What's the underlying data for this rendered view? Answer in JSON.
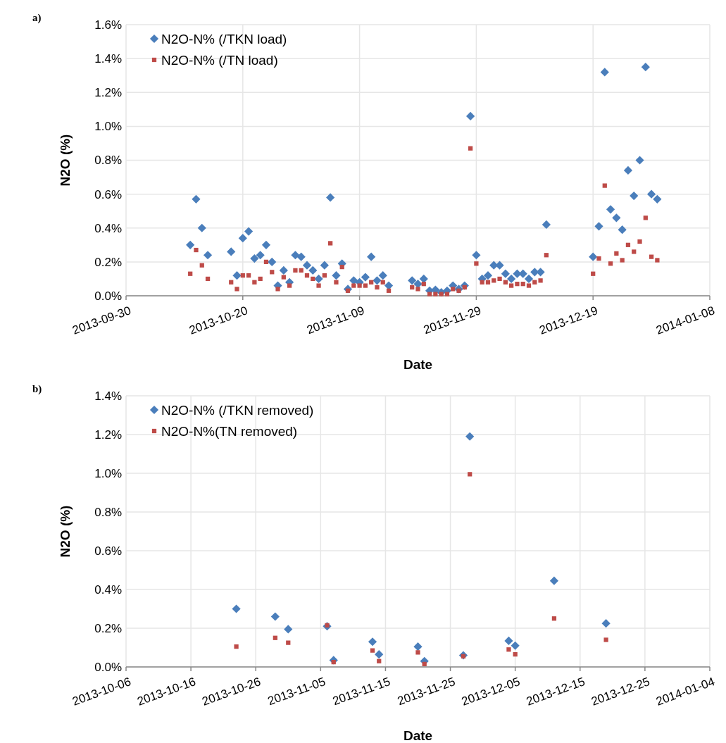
{
  "chart_data": [
    {
      "type": "scatter",
      "annotations": [
        "a)"
      ],
      "xlabel": "Date",
      "ylabel": "N2O (%)",
      "legend": "top left",
      "grid": true,
      "x": [
        "2013-10-11",
        "2013-10-12",
        "2013-10-13",
        "2013-10-14",
        "2013-10-18",
        "2013-10-19",
        "2013-10-20",
        "2013-10-21",
        "2013-10-22",
        "2013-10-23",
        "2013-10-24",
        "2013-10-25",
        "2013-10-26",
        "2013-10-27",
        "2013-10-28",
        "2013-10-29",
        "2013-10-30",
        "2013-10-31",
        "2013-11-01",
        "2013-11-02",
        "2013-11-03",
        "2013-11-04",
        "2013-11-05",
        "2013-11-06",
        "2013-11-07",
        "2013-11-08",
        "2013-11-09",
        "2013-11-10",
        "2013-11-11",
        "2013-11-12",
        "2013-11-13",
        "2013-11-14",
        "2013-11-18",
        "2013-11-19",
        "2013-11-20",
        "2013-11-21",
        "2013-11-22",
        "2013-11-23",
        "2013-11-24",
        "2013-11-25",
        "2013-11-26",
        "2013-11-27",
        "2013-11-28",
        "2013-11-29",
        "2013-11-30",
        "2013-12-01",
        "2013-12-02",
        "2013-12-03",
        "2013-12-04",
        "2013-12-05",
        "2013-12-06",
        "2013-12-07",
        "2013-12-08",
        "2013-12-09",
        "2013-12-10",
        "2013-12-11",
        "2013-12-19",
        "2013-12-20",
        "2013-12-21",
        "2013-12-22",
        "2013-12-23",
        "2013-12-24",
        "2013-12-25",
        "2013-12-26",
        "2013-12-27",
        "2013-12-28",
        "2013-12-29",
        "2013-12-30"
      ],
      "series": [
        {
          "name": "N2O-N% (/TKN load)",
          "color": "#4a7ebb",
          "marker": "diamond",
          "values": [
            0.3,
            0.57,
            0.4,
            0.24,
            0.26,
            0.12,
            0.34,
            0.38,
            0.22,
            0.24,
            0.3,
            0.2,
            0.06,
            0.15,
            0.08,
            0.24,
            0.23,
            0.18,
            0.15,
            0.1,
            0.18,
            0.58,
            0.12,
            0.19,
            0.04,
            0.09,
            0.08,
            0.11,
            0.23,
            0.09,
            0.12,
            0.06,
            0.09,
            0.07,
            0.1,
            0.03,
            0.035,
            0.02,
            0.03,
            0.06,
            0.04,
            0.06,
            1.06,
            0.24,
            0.1,
            0.12,
            0.18,
            0.18,
            0.13,
            0.1,
            0.13,
            0.13,
            0.1,
            0.14,
            0.14,
            0.42,
            0.23,
            0.41,
            1.32,
            0.51,
            0.46,
            0.39,
            0.74,
            0.59,
            0.8,
            1.35,
            0.6,
            0.57
          ]
        },
        {
          "name": "N2O-N% (/TN load)",
          "color": "#be4b48",
          "marker": "square",
          "values": [
            0.13,
            0.27,
            0.18,
            0.1,
            0.08,
            0.04,
            0.12,
            0.12,
            0.08,
            0.1,
            0.2,
            0.14,
            0.04,
            0.11,
            0.06,
            0.15,
            0.15,
            0.12,
            0.1,
            0.06,
            0.12,
            0.31,
            0.08,
            0.17,
            0.03,
            0.06,
            0.06,
            0.06,
            0.08,
            0.05,
            0.08,
            0.03,
            0.05,
            0.04,
            0.07,
            0.01,
            0.01,
            0.01,
            0.01,
            0.04,
            0.03,
            0.05,
            0.87,
            0.19,
            0.08,
            0.08,
            0.09,
            0.1,
            0.08,
            0.06,
            0.07,
            0.07,
            0.06,
            0.08,
            0.09,
            0.24,
            0.13,
            0.22,
            0.65,
            0.19,
            0.25,
            0.21,
            0.3,
            0.26,
            0.32,
            0.46,
            0.23,
            0.21
          ]
        }
      ],
      "xlim": [
        "2013-09-30",
        "2014-01-08"
      ],
      "xticks": [
        "2013-09-30",
        "2013-10-20",
        "2013-11-09",
        "2013-11-29",
        "2013-12-19",
        "2014-01-08"
      ],
      "ylim": [
        0,
        1.6
      ],
      "yticks": [
        {
          "value": 0,
          "label": "0.0%"
        },
        {
          "value": 0.2,
          "label": "0.2%"
        },
        {
          "value": 0.4,
          "label": "0.4%"
        },
        {
          "value": 0.6,
          "label": "0.6%"
        },
        {
          "value": 0.8,
          "label": "0.8%"
        },
        {
          "value": 1.0,
          "label": "1.0%"
        },
        {
          "value": 1.2,
          "label": "1.2%"
        },
        {
          "value": 1.4,
          "label": "1.4%"
        },
        {
          "value": 1.6,
          "label": "1.6%"
        }
      ]
    },
    {
      "type": "scatter",
      "annotations": [
        "b)"
      ],
      "xlabel": "Date",
      "ylabel": "N2O (%)",
      "legend": "top left",
      "grid": true,
      "x": [
        "2013-10-23",
        "2013-10-29",
        "2013-10-31",
        "2013-11-06",
        "2013-11-07",
        "2013-11-13",
        "2013-11-14",
        "2013-11-20",
        "2013-11-21",
        "2013-11-27",
        "2013-11-28",
        "2013-12-04",
        "2013-12-05",
        "2013-12-11",
        "2013-12-19"
      ],
      "series": [
        {
          "name": "N2O-N% (/TKN removed)",
          "color": "#4a7ebb",
          "marker": "diamond",
          "values": [
            0.3,
            0.26,
            0.195,
            0.21,
            0.035,
            0.13,
            0.065,
            0.105,
            0.03,
            0.06,
            1.19,
            0.135,
            0.11,
            0.445,
            0.225
          ]
        },
        {
          "name": "N2O-N%(TN removed)",
          "color": "#be4b48",
          "marker": "square",
          "values": [
            0.105,
            0.15,
            0.125,
            0.215,
            0.025,
            0.085,
            0.03,
            0.075,
            0.015,
            0.055,
            0.995,
            0.09,
            0.065,
            0.25,
            0.14
          ]
        }
      ],
      "xlim": [
        "2013-10-06",
        "2014-01-04"
      ],
      "xticks": [
        "2013-10-06",
        "2013-10-16",
        "2013-10-26",
        "2013-11-05",
        "2013-11-15",
        "2013-11-25",
        "2013-12-05",
        "2013-12-15",
        "2013-12-25",
        "2014-01-04"
      ],
      "ylim": [
        0,
        1.4
      ],
      "yticks": [
        {
          "value": 0,
          "label": "0.0%"
        },
        {
          "value": 0.2,
          "label": "0.2%"
        },
        {
          "value": 0.4,
          "label": "0.4%"
        },
        {
          "value": 0.6,
          "label": "0.6%"
        },
        {
          "value": 0.8,
          "label": "0.8%"
        },
        {
          "value": 1.0,
          "label": "1.0%"
        },
        {
          "value": 1.2,
          "label": "1.2%"
        },
        {
          "value": 1.4,
          "label": "1.4%"
        }
      ]
    }
  ]
}
